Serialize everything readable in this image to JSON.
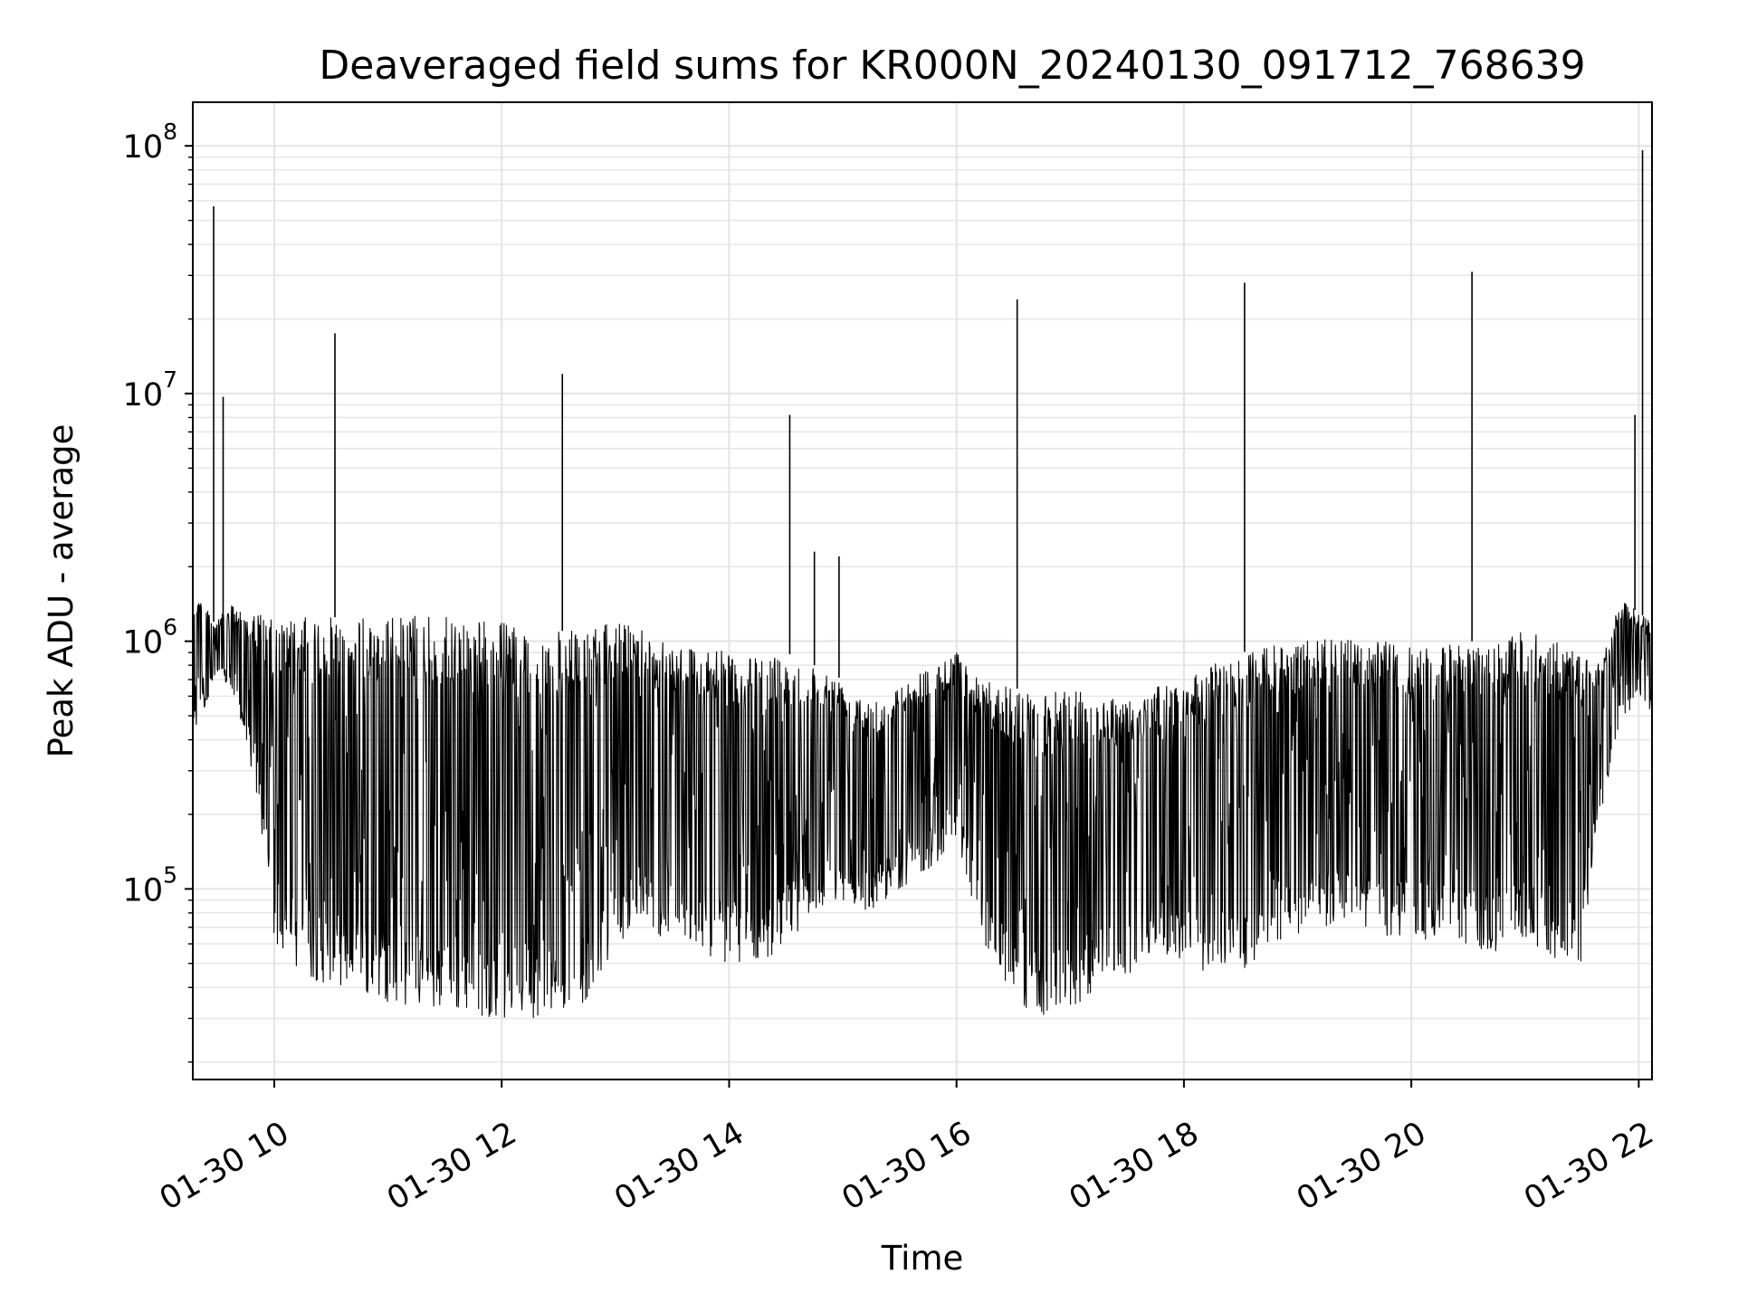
{
  "chart_data": {
    "type": "line",
    "title": "Deaveraged field sums for KR000N_20240130_091712_768639",
    "xlabel": "Time",
    "ylabel": "Peak ADU - average",
    "yscale": "log",
    "ylim": [
      17000,
      150000000
    ],
    "xlim": [
      "01-30 09:17",
      "01-30 22:07"
    ],
    "grid": true,
    "x_ticks": [
      {
        "label": "01-30 10",
        "time": "01-30 10:00"
      },
      {
        "label": "01-30 12",
        "time": "01-30 12:00"
      },
      {
        "label": "01-30 14",
        "time": "01-30 14:00"
      },
      {
        "label": "01-30 16",
        "time": "01-30 16:00"
      },
      {
        "label": "01-30 18",
        "time": "01-30 18:00"
      },
      {
        "label": "01-30 20",
        "time": "01-30 20:00"
      },
      {
        "label": "01-30 22",
        "time": "01-30 22:00"
      }
    ],
    "y_ticks": [
      {
        "base": "10",
        "exp": "5",
        "value": 100000
      },
      {
        "base": "10",
        "exp": "6",
        "value": 1000000
      },
      {
        "base": "10",
        "exp": "7",
        "value": 10000000
      },
      {
        "base": "10",
        "exp": "8",
        "value": 100000000
      }
    ],
    "line_color": "#000000",
    "series": [
      {
        "x": [
          "01-30 09:17",
          "01-30 09:22",
          "01-30 09:28",
          "01-30 09:33",
          "01-30 09:38",
          "01-30 09:45",
          "01-30 09:52",
          "01-30 10:00",
          "01-30 10:15",
          "01-30 10:30",
          "01-30 10:45",
          "01-30 11:00",
          "01-30 11:15",
          "01-30 11:30",
          "01-30 11:45",
          "01-30 12:00",
          "01-30 12:15",
          "01-30 12:30",
          "01-30 12:45",
          "01-30 13:00",
          "01-30 13:15",
          "01-30 13:30",
          "01-30 13:45",
          "01-30 14:00",
          "01-30 14:15",
          "01-30 14:30",
          "01-30 14:45",
          "01-30 15:00",
          "01-30 15:15",
          "01-30 15:30",
          "01-30 15:45",
          "01-30 16:00",
          "01-30 16:15",
          "01-30 16:30",
          "01-30 16:45",
          "01-30 17:00",
          "01-30 17:15",
          "01-30 17:30",
          "01-30 17:45",
          "01-30 18:00",
          "01-30 18:15",
          "01-30 18:30",
          "01-30 18:45",
          "01-30 19:00",
          "01-30 19:15",
          "01-30 19:30",
          "01-30 19:45",
          "01-30 20:00",
          "01-30 20:15",
          "01-30 20:30",
          "01-30 20:45",
          "01-30 21:00",
          "01-30 21:15",
          "01-30 21:30",
          "01-30 21:40",
          "01-30 21:50",
          "01-30 22:00",
          "01-30 22:07"
        ],
        "upper": [
          1600000,
          1500000,
          1200000,
          1300000,
          1400000,
          1300000,
          1300000,
          1200000,
          1250000,
          1250000,
          1250000,
          1250000,
          1300000,
          1250000,
          1250000,
          1200000,
          1100000,
          1100000,
          1100000,
          1200000,
          1150000,
          1000000,
          950000,
          900000,
          850000,
          900000,
          800000,
          700000,
          600000,
          650000,
          800000,
          900000,
          700000,
          650000,
          600000,
          650000,
          600000,
          600000,
          650000,
          700000,
          800000,
          900000,
          950000,
          1000000,
          1050000,
          1000000,
          1000000,
          950000,
          950000,
          1000000,
          1000000,
          1100000,
          1000000,
          900000,
          800000,
          1500000,
          1300000,
          1200000
        ],
        "lower": [
          400000,
          500000,
          700000,
          700000,
          600000,
          400000,
          200000,
          60000,
          45000,
          40000,
          38000,
          35000,
          33000,
          32000,
          31000,
          30000,
          30000,
          32000,
          35000,
          60000,
          70000,
          60000,
          55000,
          50000,
          48000,
          60000,
          80000,
          90000,
          80000,
          100000,
          120000,
          150000,
          60000,
          35000,
          30000,
          32000,
          40000,
          45000,
          55000,
          50000,
          45000,
          45000,
          60000,
          65000,
          70000,
          70000,
          60000,
          65000,
          60000,
          55000,
          55000,
          60000,
          50000,
          50000,
          200000,
          450000,
          600000,
          500000
        ]
      }
    ],
    "spikes": [
      {
        "x": "01-30 09:28",
        "y": 57000000
      },
      {
        "x": "01-30 09:33",
        "y": 9700000
      },
      {
        "x": "01-30 10:32",
        "y": 17500000
      },
      {
        "x": "01-30 12:32",
        "y": 12000000
      },
      {
        "x": "01-30 14:32",
        "y": 8200000
      },
      {
        "x": "01-30 14:45",
        "y": 2300000
      },
      {
        "x": "01-30 14:58",
        "y": 2200000
      },
      {
        "x": "01-30 16:32",
        "y": 24000000
      },
      {
        "x": "01-30 18:32",
        "y": 28000000
      },
      {
        "x": "01-30 20:32",
        "y": 31000000
      },
      {
        "x": "01-30 21:58",
        "y": 8200000
      },
      {
        "x": "01-30 22:02",
        "y": 96000000
      }
    ]
  }
}
